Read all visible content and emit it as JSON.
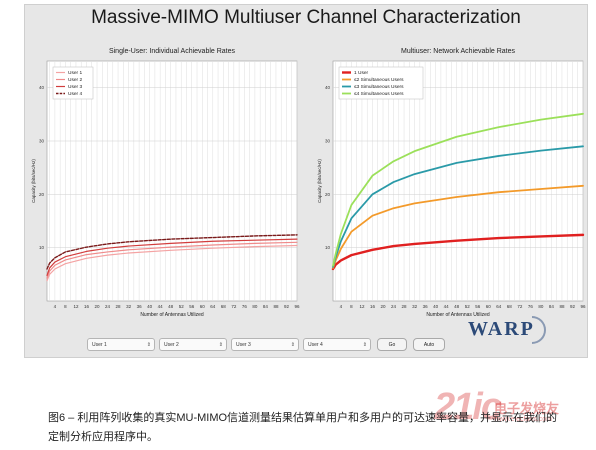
{
  "page": {
    "title": "Massive-MIMO Multiuser Channel Characterization",
    "controls": {
      "selects": [
        "User 1",
        "User 2",
        "User 3",
        "User 4"
      ],
      "go_label": "Go",
      "auto_label": "Auto"
    },
    "logo_text": "WARP",
    "caption": "图6 – 利用阵列收集的真实MU-MIMO信道测量结果估算单用户和多用户的可达速率容量，并显示在我们的定制分析应用程序中。",
    "watermark": {
      "digits": "21ic",
      "text": "电子发烧友",
      "url": "www.elecfans.com"
    },
    "colors": {
      "single_user_1": "#f4a3a3",
      "single_user_2": "#ef8a8a",
      "single_user_3": "#d23d3d",
      "single_user_4": "#7a1a1a",
      "multi_1": "#e02020",
      "multi_2": "#f39a2a",
      "multi_3": "#2a9aa8",
      "multi_4": "#9be05a"
    }
  },
  "chart_data": [
    {
      "type": "line",
      "title": "Single-User: Individual Achievable Rates",
      "xlabel": "Number of Antennas Utilized",
      "ylabel": "Capacity (bits/sec/Hz)",
      "xlim": [
        1,
        96
      ],
      "ylim": [
        0,
        45
      ],
      "xticks": [
        4,
        8,
        12,
        16,
        20,
        24,
        28,
        32,
        36,
        40,
        44,
        48,
        52,
        56,
        60,
        64,
        68,
        72,
        76,
        80,
        84,
        88,
        92,
        96
      ],
      "yticks": [
        10,
        20,
        30,
        40
      ],
      "grid": true,
      "legend": "top-left",
      "x": [
        1,
        2,
        4,
        8,
        16,
        24,
        32,
        48,
        64,
        80,
        96
      ],
      "series": [
        {
          "name": "User 1",
          "style": "solid",
          "values": [
            3.8,
            5.0,
            6.0,
            7.0,
            8.0,
            8.6,
            9.0,
            9.5,
            9.9,
            10.2,
            10.4
          ]
        },
        {
          "name": "User 2",
          "style": "solid",
          "values": [
            4.3,
            5.6,
            6.7,
            7.7,
            8.7,
            9.2,
            9.6,
            10.1,
            10.5,
            10.8,
            11.0
          ]
        },
        {
          "name": "User 3",
          "style": "solid",
          "values": [
            4.8,
            6.2,
            7.3,
            8.3,
            9.3,
            9.9,
            10.3,
            10.8,
            11.2,
            11.4,
            11.6
          ]
        },
        {
          "name": "User 4",
          "style": "dashed",
          "values": [
            6.0,
            7.1,
            8.1,
            9.2,
            10.1,
            10.7,
            11.1,
            11.6,
            11.9,
            12.2,
            12.4
          ]
        }
      ]
    },
    {
      "type": "line",
      "title": "Multiuser: Network Achievable Rates",
      "xlabel": "Number of Antennas Utilized",
      "ylabel": "Capacity (bits/sec/Hz)",
      "xlim": [
        1,
        96
      ],
      "ylim": [
        0,
        45
      ],
      "xticks": [
        4,
        8,
        12,
        16,
        20,
        24,
        28,
        32,
        36,
        40,
        44,
        48,
        52,
        56,
        60,
        64,
        68,
        72,
        76,
        80,
        84,
        88,
        92,
        96
      ],
      "yticks": [
        10,
        20,
        30,
        40
      ],
      "grid": true,
      "legend": "top-left",
      "x": [
        1,
        2,
        4,
        8,
        16,
        24,
        32,
        48,
        64,
        80,
        96
      ],
      "series": [
        {
          "name": "1 User",
          "values": [
            6.0,
            6.8,
            7.6,
            8.6,
            9.6,
            10.3,
            10.7,
            11.3,
            11.8,
            12.1,
            12.4
          ]
        },
        {
          "name": "≤2 Simultaneous Users",
          "values": [
            6.2,
            7.6,
            9.8,
            13.0,
            16.0,
            17.4,
            18.3,
            19.5,
            20.4,
            21.0,
            21.6
          ]
        },
        {
          "name": "≤3 Simultaneous Users",
          "values": [
            6.4,
            8.2,
            11.2,
            15.5,
            20.0,
            22.3,
            23.8,
            25.9,
            27.2,
            28.2,
            29.0
          ]
        },
        {
          "name": "≤4 Simultaneous Users",
          "values": [
            6.6,
            8.8,
            12.6,
            18.0,
            23.5,
            26.2,
            28.1,
            30.8,
            32.6,
            34.0,
            35.1
          ]
        }
      ]
    }
  ]
}
